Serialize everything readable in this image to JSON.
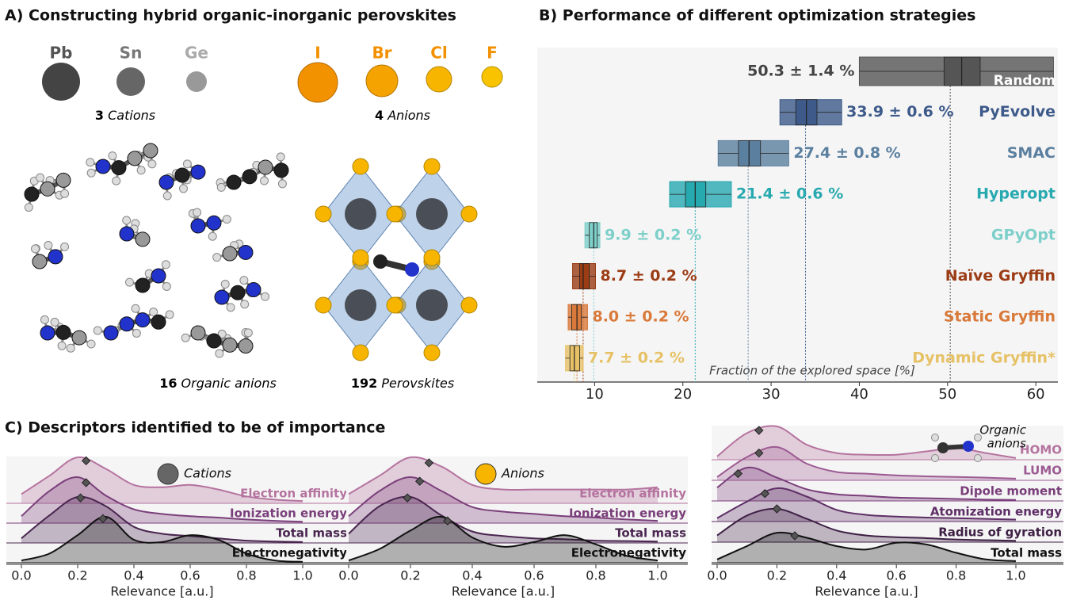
{
  "panel_a": {
    "title": "A) Constructing hybrid organic-inorganic perovskites",
    "cations": [
      "Pb",
      "Sn",
      "Ge"
    ],
    "anions": [
      "I",
      "Br",
      "Cl",
      "F"
    ],
    "cation_count": 3,
    "cation_label": "Cations",
    "anion_count": 4,
    "anion_label": "Anions",
    "organic_count": 16,
    "organic_label": "Organic anions",
    "perovskite_count": 192,
    "perovskite_label": "Perovskites"
  },
  "chart_data": [
    {
      "type": "box",
      "title": "B) Performance of different optimization strategies",
      "xlabel": "Fraction of the explored space [%]",
      "xlim": [
        3.5,
        62.5
      ],
      "xticks": [
        10,
        20,
        30,
        40,
        50,
        60
      ],
      "series": [
        {
          "name": "Random",
          "color": "#555555",
          "lo": 40,
          "q1": 49.6,
          "med": 51.6,
          "q3": 53.7,
          "hi": 62,
          "mean": 50.3,
          "err": 1.4,
          "value_label": "50.3 ± 1.4 %"
        },
        {
          "name": "PyEvolve",
          "color": "#3d5a8a",
          "lo": 31,
          "q1": 32.8,
          "med": 34,
          "q3": 35.2,
          "hi": 38,
          "mean": 33.9,
          "err": 0.6,
          "value_label": "33.9 ± 0.6 %"
        },
        {
          "name": "SMAC",
          "color": "#5b7f9f",
          "lo": 24,
          "q1": 26.3,
          "med": 27.5,
          "q3": 28.8,
          "hi": 32,
          "mean": 27.4,
          "err": 0.8,
          "value_label": "27.4 ± 0.8 %"
        },
        {
          "name": "Hyperopt",
          "color": "#27a9b0",
          "lo": 18.5,
          "q1": 20.3,
          "med": 21.4,
          "q3": 22.6,
          "hi": 25.5,
          "mean": 21.4,
          "err": 0.6,
          "value_label": "21.4 ± 0.6 %"
        },
        {
          "name": "GPyOpt",
          "color": "#7dcfca",
          "lo": 8.9,
          "q1": 9.4,
          "med": 9.9,
          "q3": 10.3,
          "hi": 10.6,
          "mean": 9.9,
          "err": 0.2,
          "value_label": "9.9 ± 0.2 %"
        },
        {
          "name": "Naïve Gryffin",
          "color": "#9b3c14",
          "lo": 7.5,
          "q1": 8.3,
          "med": 8.7,
          "q3": 9.4,
          "hi": 10.1,
          "mean": 8.7,
          "err": 0.2,
          "value_label": "8.7 ± 0.2 %"
        },
        {
          "name": "Static Gryffin",
          "color": "#d9793a",
          "lo": 7,
          "q1": 7.4,
          "med": 8,
          "q3": 8.5,
          "hi": 9.2,
          "mean": 8,
          "err": 0.2,
          "value_label": "8.0 ± 0.2 %"
        },
        {
          "name": "Dynamic Gryffin*",
          "color": "#e6c166",
          "lo": 6.7,
          "q1": 7.2,
          "med": 7.7,
          "q3": 8.3,
          "hi": 8.7,
          "mean": 7.7,
          "err": 0.2,
          "value_label": "7.7 ± 0.2 %"
        }
      ]
    },
    {
      "type": "ridgeline",
      "title": "C) Descriptors identified to be of importance",
      "label": [
        "Cations"
      ],
      "icon_color": "#666666",
      "xlabel": "Relevance [a.u.]",
      "xlim": [
        -0.05,
        1.05
      ],
      "xticks": [
        {
          "value": 0,
          "label": "0.0"
        },
        0.2,
        0.4,
        0.6,
        0.8,
        {
          "value": 1,
          "label": "1.0"
        }
      ],
      "ylim": [
        0,
        1
      ],
      "x": [
        0,
        0.1,
        0.2,
        0.3,
        0.4,
        0.5,
        0.6,
        0.7,
        0.8,
        0.9,
        1
      ],
      "series": [
        {
          "name": "Electron affinity",
          "color": "#b5739f",
          "values": [
            0.2,
            0.6,
            1,
            0.75,
            0.4,
            0.35,
            0.4,
            0.3,
            0.15,
            0.08,
            0.05
          ],
          "marker": 0.23
        },
        {
          "name": "Ionization energy",
          "color": "#7a3f7a",
          "values": [
            0.15,
            0.7,
            1,
            0.6,
            0.3,
            0.2,
            0.15,
            0.12,
            0.08,
            0.05,
            0.03
          ],
          "marker": 0.23
        },
        {
          "name": "Total mass",
          "color": "#4a2650",
          "values": [
            0.1,
            0.6,
            1,
            0.8,
            0.35,
            0.2,
            0.15,
            0.1,
            0.05,
            0.03,
            0.02
          ],
          "marker": 0.21
        },
        {
          "name": "Electronegativity",
          "color": "#111111",
          "values": [
            0.05,
            0.2,
            0.6,
            1,
            0.5,
            0.45,
            0.6,
            0.5,
            0.2,
            0.05,
            0.02
          ],
          "marker": 0.29
        }
      ]
    },
    {
      "type": "ridgeline",
      "label": [
        "Anions"
      ],
      "icon_color": "#f7b500",
      "xlabel": "Relevance [a.u.]",
      "xlim": [
        -0.05,
        1.05
      ],
      "xticks": [
        {
          "value": 0,
          "label": "0.0"
        },
        0.2,
        0.4,
        0.6,
        0.8,
        {
          "value": 1,
          "label": "1.0"
        }
      ],
      "ylim": [
        0,
        1
      ],
      "x": [
        0,
        0.1,
        0.2,
        0.3,
        0.4,
        0.5,
        0.6,
        0.7,
        0.8,
        0.9,
        1
      ],
      "series": [
        {
          "name": "Electron affinity",
          "color": "#b5739f",
          "values": [
            0.2,
            0.6,
            1,
            0.8,
            0.4,
            0.3,
            0.3,
            0.3,
            0.3,
            0.3,
            0.35
          ],
          "marker": 0.26
        },
        {
          "name": "Ionization energy",
          "color": "#7a3f7a",
          "values": [
            0.15,
            0.7,
            1,
            0.7,
            0.35,
            0.25,
            0.2,
            0.15,
            0.12,
            0.08,
            0.05
          ],
          "marker": 0.23
        },
        {
          "name": "Total mass",
          "color": "#4a2650",
          "values": [
            0.2,
            0.8,
            1,
            0.6,
            0.25,
            0.15,
            0.1,
            0.08,
            0.05,
            0.04,
            0.03
          ],
          "marker": 0.19
        },
        {
          "name": "Electronegativity",
          "color": "#111111",
          "values": [
            0.05,
            0.3,
            0.7,
            1,
            0.55,
            0.35,
            0.45,
            0.6,
            0.4,
            0.15,
            0.05
          ],
          "marker": 0.32
        }
      ]
    },
    {
      "type": "ridgeline",
      "label": [
        "Organic",
        "anions"
      ],
      "icon_color": "#333333",
      "xlabel": "Relevance [a.u.]",
      "xlim": [
        -0.05,
        1.05
      ],
      "xticks": [
        {
          "value": 0,
          "label": "0.0"
        },
        0.2,
        0.4,
        0.6,
        0.8,
        {
          "value": 1,
          "label": "1.0"
        }
      ],
      "ylim": [
        0,
        1
      ],
      "x": [
        0,
        0.1,
        0.2,
        0.3,
        0.4,
        0.5,
        0.6,
        0.7,
        0.8,
        0.9,
        1
      ],
      "series": [
        {
          "name": "HOMO",
          "color": "#b5739f",
          "values": [
            0.1,
            0.8,
            1,
            0.45,
            0.2,
            0.15,
            0.15,
            0.25,
            0.35,
            0.2,
            0.05
          ],
          "marker": 0.14
        },
        {
          "name": "LUMO",
          "color": "#9c5a92",
          "values": [
            0.1,
            0.7,
            1,
            0.5,
            0.25,
            0.2,
            0.15,
            0.12,
            0.1,
            0.08,
            0.05
          ],
          "marker": 0.14
        },
        {
          "name": "Dipole moment",
          "color": "#7a3f7a",
          "values": [
            0.4,
            1,
            0.7,
            0.35,
            0.2,
            0.15,
            0.1,
            0.08,
            0.06,
            0.04,
            0.03
          ],
          "marker": 0.07
        },
        {
          "name": "Atomization energy",
          "color": "#5e2f66",
          "values": [
            0.1,
            0.6,
            1,
            0.75,
            0.35,
            0.2,
            0.15,
            0.12,
            0.1,
            0.08,
            0.06
          ],
          "marker": 0.16
        },
        {
          "name": "Radius of gyration",
          "color": "#3e2045",
          "values": [
            0.2,
            0.8,
            1,
            0.7,
            0.35,
            0.2,
            0.15,
            0.12,
            0.08,
            0.06,
            0.04
          ],
          "marker": 0.2
        },
        {
          "name": "Total mass",
          "color": "#111111",
          "values": [
            0.1,
            0.5,
            0.9,
            0.75,
            0.5,
            0.4,
            0.6,
            0.55,
            0.3,
            0.1,
            0.05
          ],
          "marker": 0.26
        }
      ]
    }
  ]
}
